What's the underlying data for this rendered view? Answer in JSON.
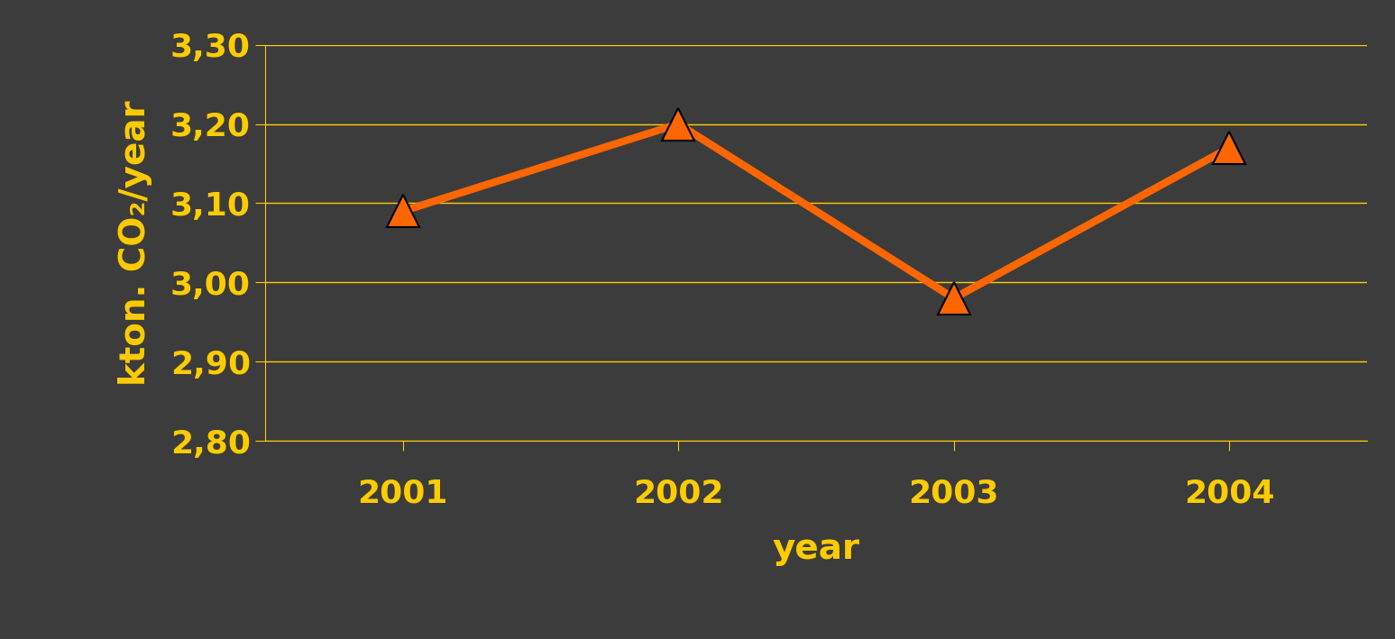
{
  "chart_data": {
    "type": "line",
    "categories": [
      "2001",
      "2002",
      "2003",
      "2004"
    ],
    "values": [
      3.09,
      3.2,
      2.98,
      3.17
    ],
    "color": "#ff6600",
    "marker": "triangle",
    "line_style": "solid",
    "x_label": "year",
    "y_label": "kton. CO₂/year",
    "ylim": [
      2.8,
      3.3
    ],
    "yticks": [
      {
        "value": 2.8,
        "label": "2,80"
      },
      {
        "value": 2.9,
        "label": "2,90"
      },
      {
        "value": 3.0,
        "label": "3,00"
      },
      {
        "value": 3.1,
        "label": "3,10"
      },
      {
        "value": 3.2,
        "label": "3,20"
      },
      {
        "value": 3.3,
        "label": "3,30"
      }
    ],
    "grid": true
  }
}
